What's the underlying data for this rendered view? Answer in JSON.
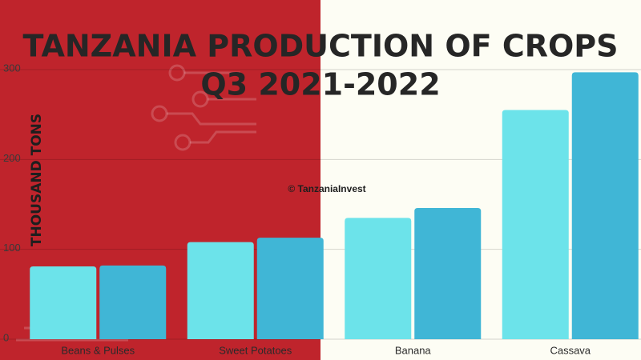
{
  "chart_data": {
    "type": "bar",
    "title": "TANZANIA PRODUCTION OF CROPS",
    "subtitle": "Q3 2021-2022",
    "y_label": "THOUSAND TONS",
    "annotation": "© TanzaniaInvest",
    "categories": [
      "Beans & Pulses",
      "Sweet Potatoes",
      "Banana",
      "Cassava"
    ],
    "series": [
      {
        "color": "#6ce3ea",
        "values": [
          81,
          108,
          135,
          255
        ]
      },
      {
        "color": "#40b6d6",
        "values": [
          82,
          113,
          146,
          297
        ]
      }
    ],
    "ylim": [
      0,
      300
    ],
    "yticks": [
      0,
      100,
      200,
      300
    ],
    "grid": true
  }
}
